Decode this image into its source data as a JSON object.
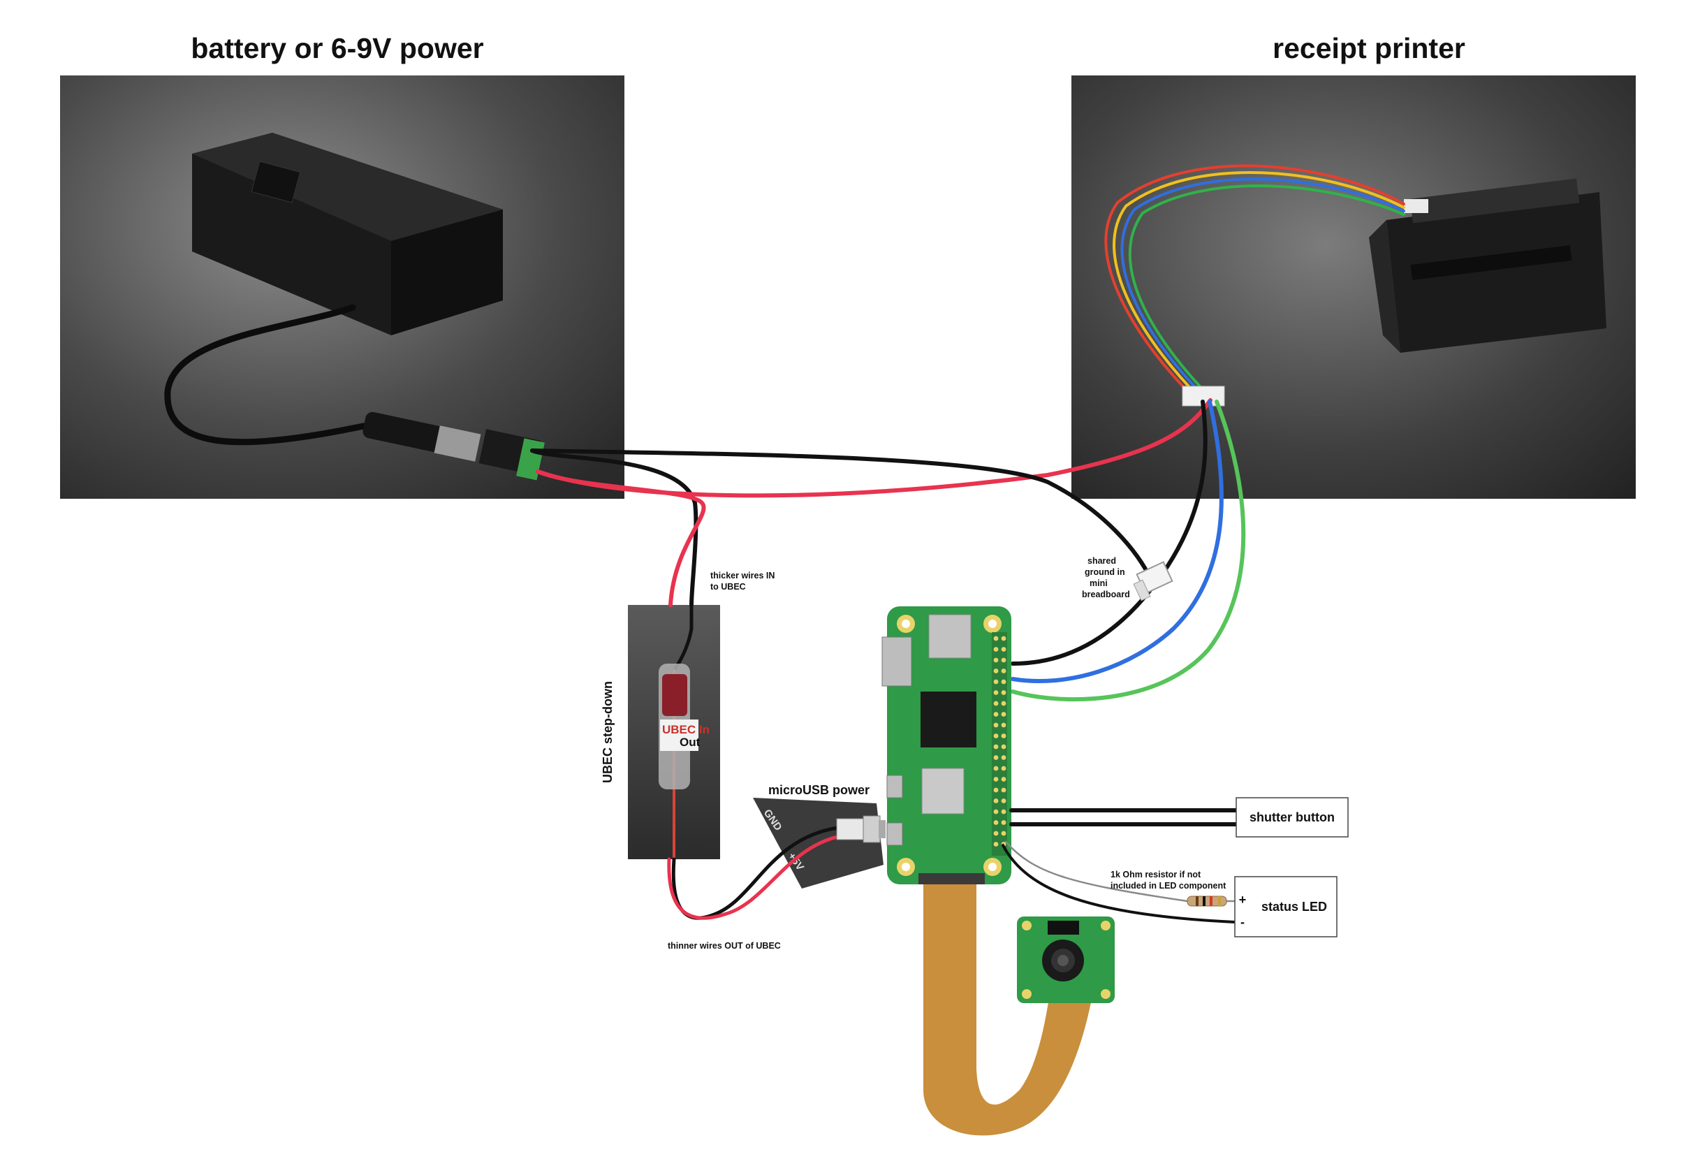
{
  "titles": {
    "battery": "battery or 6-9V power",
    "printer": "receipt printer"
  },
  "labels": {
    "thicker_in": [
      "thicker wires IN",
      "to UBEC"
    ],
    "ubec": "UBEC step-down",
    "ubec_sticker_1": "UBEC In",
    "ubec_sticker_2": "Out",
    "microusb": "microUSB power",
    "gnd": "GND",
    "plus5v": "+5V",
    "thinner_out": "thinner wires OUT of UBEC",
    "shared_ground": [
      "shared",
      "ground in",
      "mini",
      "breadboard"
    ],
    "shutter": "shutter button",
    "resistor": [
      "1k Ohm resistor if not",
      "included in LED component"
    ],
    "led": "status LED",
    "led_plus": "+",
    "led_minus": "-"
  },
  "colors": {
    "black_wire": "#111111",
    "red_wire": "#e8334f",
    "blue_wire": "#2f6fe0",
    "green_wire": "#56c45a",
    "pcb_green": "#2f9a47",
    "ribbon": "#c98f3c",
    "photo_bg": "#3c3c3c"
  }
}
